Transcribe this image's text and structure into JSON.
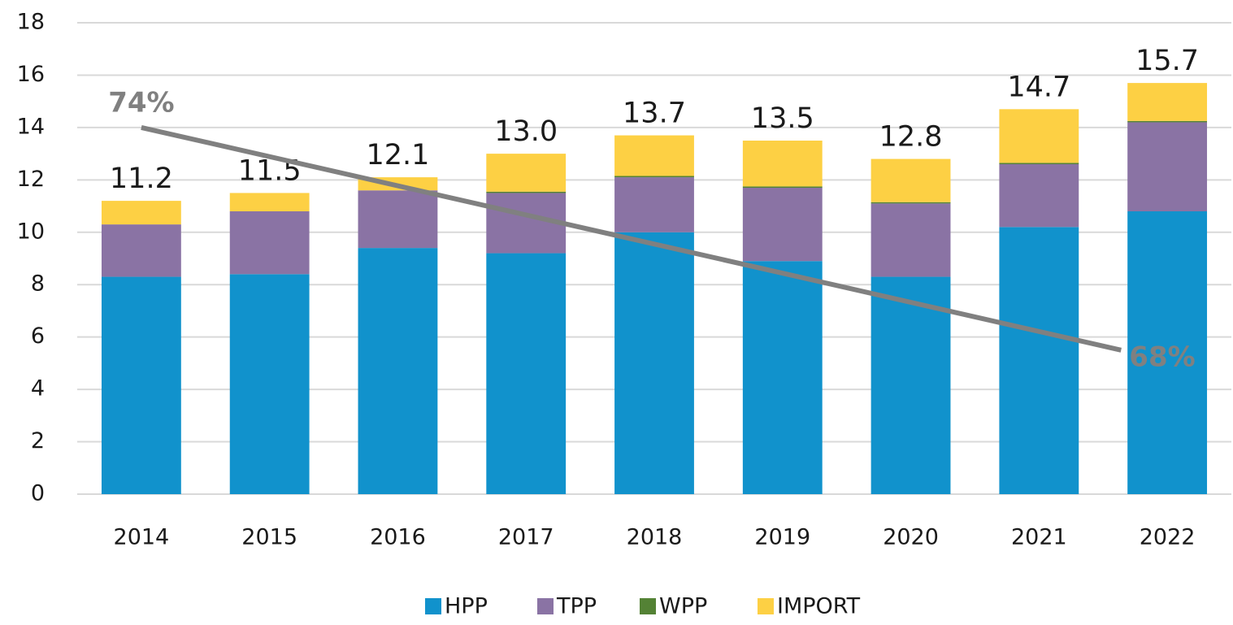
{
  "chart_data": {
    "type": "stacked_bar",
    "categories": [
      "2014",
      "2015",
      "2016",
      "2017",
      "2018",
      "2019",
      "2020",
      "2021",
      "2022"
    ],
    "series": [
      {
        "name": "HPP",
        "color": "#1192cc",
        "values": [
          8.3,
          8.4,
          9.4,
          9.2,
          10.0,
          8.9,
          8.3,
          10.2,
          10.8
        ]
      },
      {
        "name": "TPP",
        "color": "#8a73a4",
        "values": [
          2.0,
          2.4,
          2.2,
          2.3,
          2.1,
          2.8,
          2.8,
          2.4,
          3.4
        ]
      },
      {
        "name": "WPP",
        "color": "#548235",
        "values": [
          0,
          0,
          0,
          0.05,
          0.05,
          0.05,
          0.05,
          0.05,
          0.05
        ]
      },
      {
        "name": "IMPORT",
        "color": "#fdd044",
        "values": [
          0.9,
          0.7,
          0.5,
          1.45,
          1.55,
          1.75,
          1.65,
          2.05,
          1.45
        ]
      }
    ],
    "total_labels": [
      "11.2",
      "11.5",
      "12.1",
      "13.0",
      "13.7",
      "13.5",
      "12.8",
      "14.7",
      "15.7"
    ],
    "trend_line": {
      "start": 14,
      "end": 5.5,
      "start_label": "74%",
      "end_label": "68%",
      "color": "#808080"
    },
    "ylim": [
      0,
      18
    ],
    "yticks": [
      0,
      2,
      4,
      6,
      8,
      10,
      12,
      14,
      16,
      18
    ],
    "grid": true,
    "legend": "bottom"
  }
}
